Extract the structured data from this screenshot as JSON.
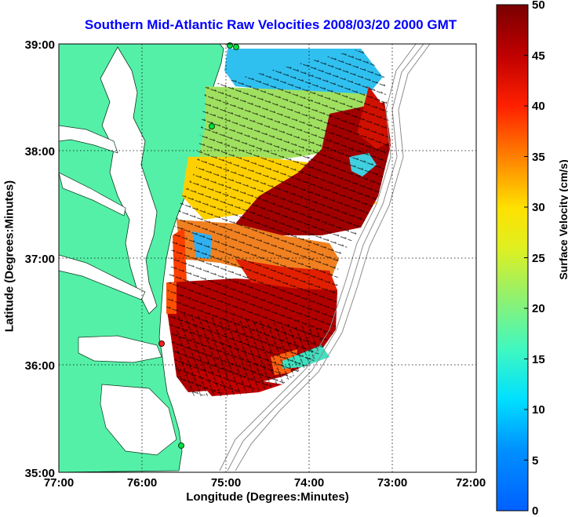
{
  "title": "Southern Mid-Atlantic Raw Velocities 2008/03/20 2000 GMT",
  "xlabel": "Longitude (Degrees:Minutes)",
  "ylabel": "Latitude (Degrees:Minutes)",
  "colorbar": {
    "label": "Surface Velocity (cm/s)",
    "ticks": [
      "50",
      "45",
      "40",
      "35",
      "30",
      "25",
      "20",
      "15",
      "10",
      "5",
      "0"
    ],
    "min": 0,
    "max": 50
  },
  "map": {
    "lon_ticks": [
      "77:00",
      "76:00",
      "75:00",
      "74:00",
      "73:00",
      "72:00"
    ],
    "lat_ticks": [
      "39:00",
      "38:00",
      "37:00",
      "36:00",
      "35:00"
    ],
    "lon_range": [
      -77,
      -72
    ],
    "lat_range": [
      35,
      39
    ],
    "grid": true,
    "land_color": "#55f0a8",
    "stations_green": 4,
    "stations_red": 1
  }
}
